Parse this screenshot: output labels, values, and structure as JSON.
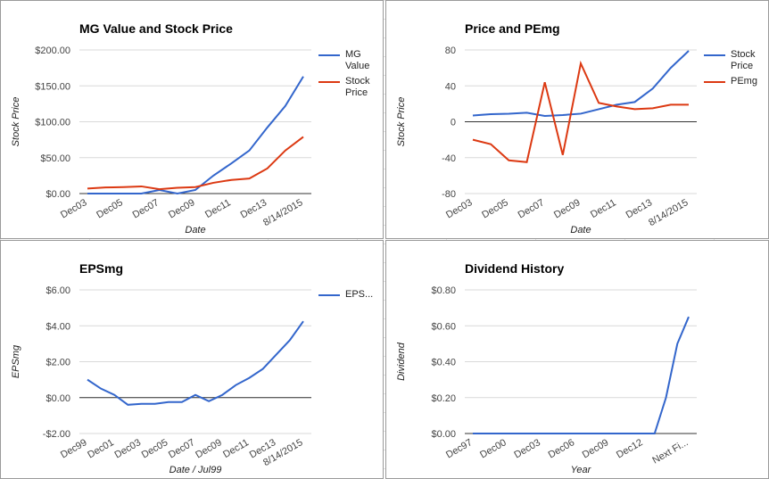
{
  "chart_data": [
    {
      "type": "line",
      "title": "MG Value and Stock Price",
      "xlabel": "Date",
      "ylabel": "Stock Price",
      "categories": [
        "Dec03",
        null,
        "Dec05",
        null,
        "Dec07",
        null,
        "Dec09",
        null,
        "Dec11",
        null,
        "Dec13",
        null,
        "8/14/2015"
      ],
      "series": [
        {
          "name": "MG Value",
          "color": "#3366cc",
          "values": [
            0,
            0,
            0,
            0,
            5,
            0,
            5,
            25,
            42,
            60,
            92,
            122,
            163
          ]
        },
        {
          "name": "Stock Price",
          "color": "#dc3912",
          "values": [
            7,
            8.5,
            9,
            10,
            6,
            8,
            9,
            15,
            19,
            21,
            35,
            60,
            79
          ]
        }
      ],
      "ylim": [
        0,
        200
      ],
      "yticks": [
        {
          "value": 0,
          "label": "$0.00"
        },
        {
          "value": 50,
          "label": "$50.00"
        },
        {
          "value": 100,
          "label": "$100.00"
        },
        {
          "value": 150,
          "label": "$150.00"
        },
        {
          "value": 200,
          "label": "$200.00"
        }
      ],
      "grid": true,
      "legend": "right"
    },
    {
      "type": "line",
      "title": "Price and PEmg",
      "xlabel": "Date",
      "ylabel": "Stock Price",
      "categories": [
        "Dec03",
        null,
        "Dec05",
        null,
        "Dec07",
        null,
        "Dec09",
        null,
        "Dec11",
        null,
        "Dec13",
        null,
        "8/14/2015"
      ],
      "series": [
        {
          "name": "Stock Price",
          "color": "#3366cc",
          "values": [
            7,
            8.5,
            9,
            10,
            6.5,
            7.5,
            9,
            14,
            19,
            22,
            37,
            60,
            79
          ]
        },
        {
          "name": "PEmg",
          "color": "#dc3912",
          "values": [
            -20,
            -25,
            -43,
            -45,
            44,
            -37,
            65,
            21,
            17,
            14,
            15,
            19,
            19
          ]
        }
      ],
      "ylim": [
        -80,
        80
      ],
      "yticks": [
        -80,
        -40,
        0,
        40,
        80
      ],
      "grid": true,
      "legend": "right"
    },
    {
      "type": "line",
      "title": "EPSmg",
      "xlabel": "Date / Jul99",
      "ylabel": "EPSmg",
      "categories": [
        "Dec99",
        null,
        "Dec01",
        null,
        "Dec03",
        null,
        "Dec05",
        null,
        "Dec07",
        null,
        "Dec09",
        null,
        "Dec11",
        null,
        "Dec13",
        null,
        "8/14/2015"
      ],
      "series": [
        {
          "name": "EPS...",
          "color": "#3366cc",
          "values": [
            1.0,
            0.5,
            0.15,
            -0.4,
            -0.35,
            -0.35,
            -0.25,
            -0.25,
            0.15,
            -0.2,
            0.15,
            0.7,
            1.1,
            1.6,
            2.4,
            3.2,
            4.25
          ]
        }
      ],
      "ylim": [
        -2,
        6
      ],
      "yticks": [
        {
          "value": -2,
          "label": "-$2.00"
        },
        {
          "value": 0,
          "label": "$0.00"
        },
        {
          "value": 2,
          "label": "$2.00"
        },
        {
          "value": 4,
          "label": "$4.00"
        },
        {
          "value": 6,
          "label": "$6.00"
        }
      ],
      "grid": true,
      "legend": "right"
    },
    {
      "type": "line",
      "title": "Dividend History",
      "xlabel": "Year",
      "ylabel": "Dividend",
      "categories": [
        "Dec97",
        null,
        null,
        "Dec00",
        null,
        null,
        "Dec03",
        null,
        null,
        "Dec06",
        null,
        null,
        "Dec09",
        null,
        null,
        "Dec12",
        null,
        null,
        null,
        "Next Fi..."
      ],
      "series": [
        {
          "color": "#3366cc",
          "values": [
            0,
            0,
            0,
            0,
            0,
            0,
            0,
            0,
            0,
            0,
            0,
            0,
            0,
            0,
            0,
            0,
            0,
            0.2,
            0.5,
            0.65
          ]
        }
      ],
      "ylim": [
        0,
        0.8
      ],
      "yticks": [
        {
          "value": 0,
          "label": "$0.00"
        },
        {
          "value": 0.2,
          "label": "$0.20"
        },
        {
          "value": 0.4,
          "label": "$0.40"
        },
        {
          "value": 0.6,
          "label": "$0.60"
        },
        {
          "value": 0.8,
          "label": "$0.80"
        }
      ],
      "grid": true
    }
  ]
}
